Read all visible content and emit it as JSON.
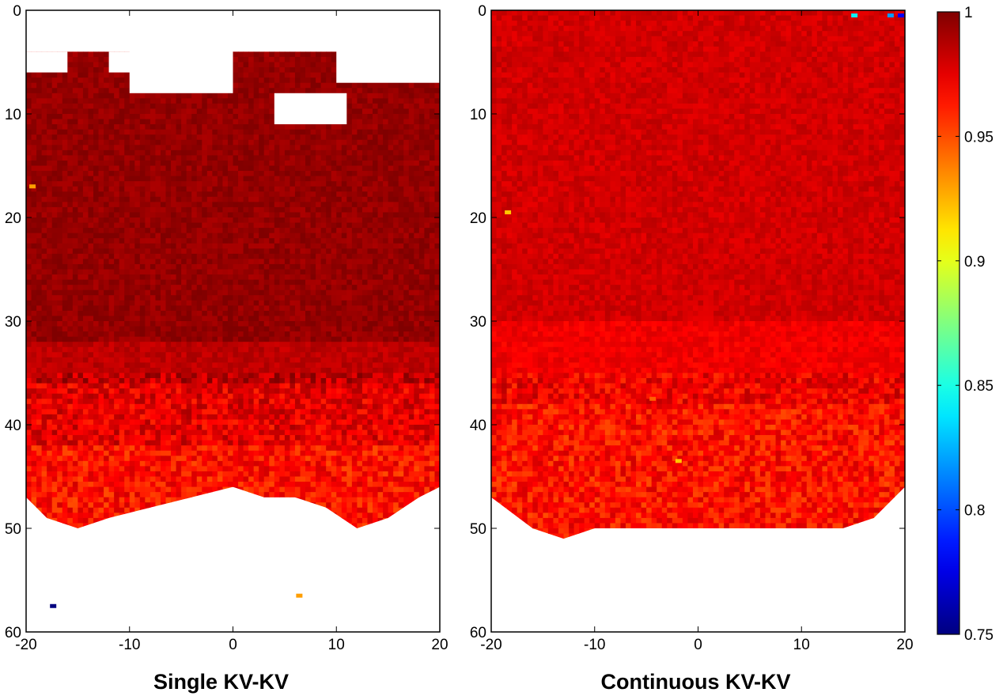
{
  "chart_data": [
    {
      "type": "heatmap",
      "title": "Single KV-KV",
      "xlim": [
        -20,
        20
      ],
      "ylim": [
        0,
        60
      ],
      "y_reversed": true,
      "xticks": [
        -20,
        -10,
        0,
        10,
        20
      ],
      "yticks": [
        0,
        10,
        20,
        30,
        40,
        50,
        60
      ],
      "valid_region": {
        "top_depth_approx": 4,
        "bottom_boundary": [
          {
            "x": -20,
            "y": 47
          },
          {
            "x": -18,
            "y": 49
          },
          {
            "x": -15,
            "y": 50
          },
          {
            "x": -12,
            "y": 49
          },
          {
            "x": -8,
            "y": 48
          },
          {
            "x": -4,
            "y": 47
          },
          {
            "x": 0,
            "y": 46
          },
          {
            "x": 3,
            "y": 47
          },
          {
            "x": 6,
            "y": 47
          },
          {
            "x": 9,
            "y": 48
          },
          {
            "x": 12,
            "y": 50
          },
          {
            "x": 15,
            "y": 49
          },
          {
            "x": 18,
            "y": 47
          },
          {
            "x": 20,
            "y": 46
          }
        ],
        "top_gaps": [
          {
            "x": [
              -20,
              -16
            ],
            "y": [
              4,
              6
            ]
          },
          {
            "x": [
              -12,
              -5
            ],
            "y": [
              4,
              6
            ]
          },
          {
            "x": [
              -10,
              0
            ],
            "y": [
              3,
              8
            ]
          },
          {
            "x": [
              4,
              11
            ],
            "y": [
              8,
              11
            ]
          },
          {
            "x": [
              10,
              20
            ],
            "y": [
              2,
              7
            ]
          },
          {
            "x": [
              0,
              9
            ],
            "y": [
              0,
              2.5
            ]
          }
        ]
      },
      "value_bands": [
        {
          "depth": [
            4,
            32
          ],
          "value": 0.995
        },
        {
          "depth": [
            32,
            36
          ],
          "value": 0.985
        },
        {
          "depth": [
            36,
            42
          ],
          "value": 0.975
        },
        {
          "depth": [
            42,
            50
          ],
          "value": 0.965
        }
      ],
      "outliers": [
        {
          "x": -17.5,
          "y": 57.5,
          "value": 0.75
        },
        {
          "x": 6.3,
          "y": 56.5,
          "value": 0.93
        },
        {
          "x": -19.5,
          "y": 17,
          "value": 0.93
        }
      ]
    },
    {
      "type": "heatmap",
      "title": "Continuous KV-KV",
      "xlim": [
        -20,
        20
      ],
      "ylim": [
        0,
        60
      ],
      "y_reversed": true,
      "xticks": [
        -20,
        -10,
        0,
        10,
        20
      ],
      "yticks": [
        0,
        10,
        20,
        30,
        40,
        50,
        60
      ],
      "valid_region": {
        "top_depth_approx": 0,
        "bottom_boundary": [
          {
            "x": -20,
            "y": 47
          },
          {
            "x": -16,
            "y": 50
          },
          {
            "x": -13,
            "y": 51
          },
          {
            "x": -10,
            "y": 50
          },
          {
            "x": -5,
            "y": 50
          },
          {
            "x": 0,
            "y": 50
          },
          {
            "x": 5,
            "y": 50
          },
          {
            "x": 10,
            "y": 50
          },
          {
            "x": 14,
            "y": 50
          },
          {
            "x": 17,
            "y": 49
          },
          {
            "x": 20,
            "y": 46
          }
        ]
      },
      "value_bands": [
        {
          "depth": [
            0,
            30
          ],
          "value": 0.98
        },
        {
          "depth": [
            30,
            38
          ],
          "value": 0.972
        },
        {
          "depth": [
            38,
            51
          ],
          "value": 0.965
        }
      ],
      "outliers": [
        {
          "x": -18.5,
          "y": 19.5,
          "value": 0.92
        },
        {
          "x": -2,
          "y": 43.5,
          "value": 0.92
        },
        {
          "x": -4.5,
          "y": 37.5,
          "value": 0.945
        },
        {
          "x": 15,
          "y": 0.5,
          "value": 0.84
        },
        {
          "x": 18.5,
          "y": 0.5,
          "value": 0.82
        },
        {
          "x": 19.5,
          "y": 0.5,
          "value": 0.78
        }
      ]
    }
  ],
  "colorbar": {
    "colormap": "jet",
    "min": 0.75,
    "max": 1,
    "ticks": [
      1,
      0.95,
      0.9,
      0.85,
      0.8,
      0.75
    ],
    "tick_labels": [
      "1",
      "0.95",
      "0.9",
      "0.85",
      "0.8",
      "0.75"
    ]
  }
}
